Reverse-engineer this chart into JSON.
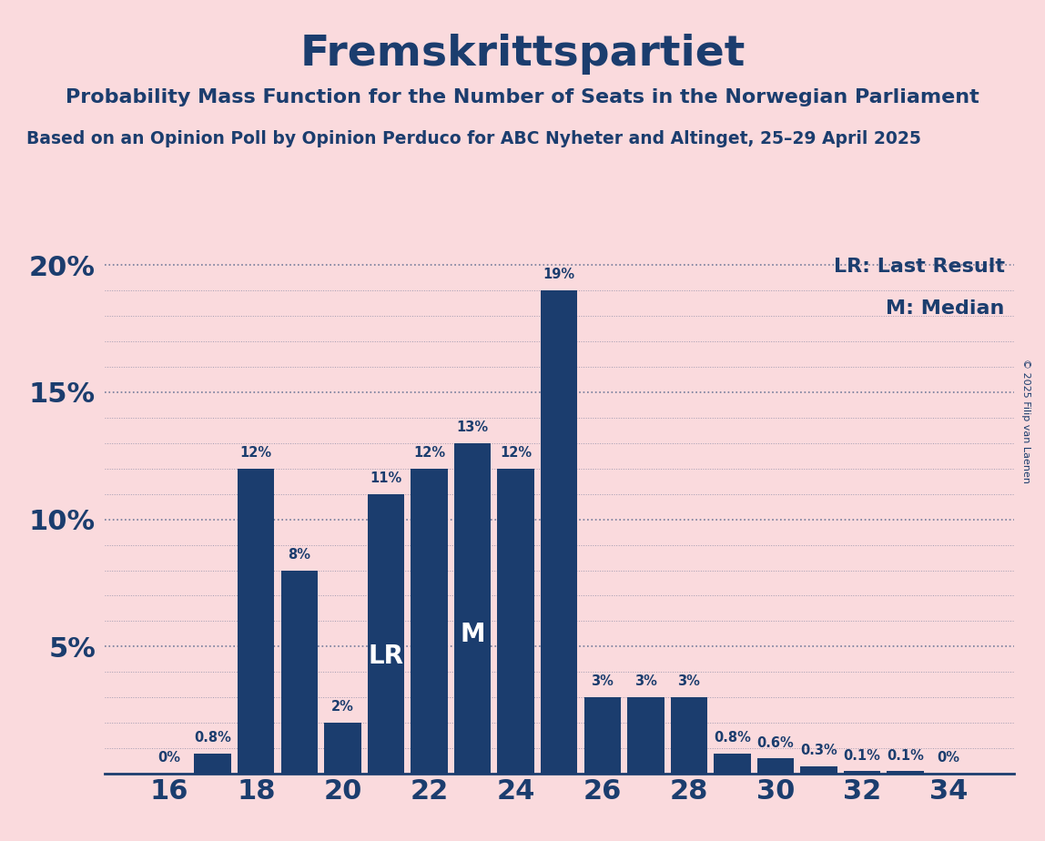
{
  "title": "Fremskrittspartiet",
  "subtitle": "Probability Mass Function for the Number of Seats in the Norwegian Parliament",
  "subtitle2": "Based on an Opinion Poll by Opinion Perduco for ABC Nyheter and Altinget, 25–29 April 2025",
  "copyright": "© 2025 Filip van Laenen",
  "seats": [
    16,
    17,
    18,
    19,
    20,
    21,
    22,
    23,
    24,
    25,
    26,
    27,
    28,
    29,
    30,
    31,
    32,
    33,
    34
  ],
  "probabilities": [
    0.0,
    0.8,
    12.0,
    8.0,
    2.0,
    11.0,
    12.0,
    13.0,
    12.0,
    19.0,
    3.0,
    3.0,
    3.0,
    0.8,
    0.6,
    0.3,
    0.1,
    0.1,
    0.0
  ],
  "bar_color": "#1b3d6e",
  "background_color": "#fadadd",
  "text_color": "#1b3d6e",
  "lr_seat": 21,
  "median_seat": 23,
  "ylim": [
    0,
    20.5
  ],
  "ytick_vals": [
    0,
    5,
    10,
    15,
    20
  ],
  "ytick_labels": [
    "",
    "5%",
    "10%",
    "15%",
    "20%"
  ],
  "xtick_vals": [
    16,
    18,
    20,
    22,
    24,
    26,
    28,
    30,
    32,
    34
  ],
  "xlim_left": 14.5,
  "xlim_right": 35.5,
  "legend_lr": "LR: Last Result",
  "legend_m": "M: Median"
}
